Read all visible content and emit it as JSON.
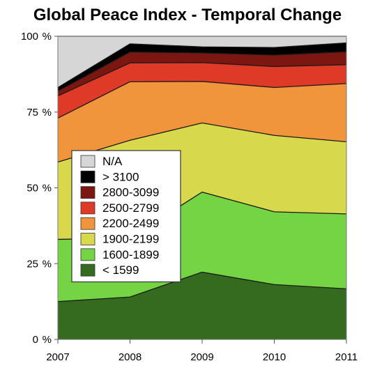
{
  "chart_data": {
    "type": "area",
    "stacked": true,
    "title": "Global Peace Index - Temporal Change",
    "xlabel": "",
    "ylabel": "",
    "x": [
      "2007",
      "2008",
      "2009",
      "2010",
      "2011"
    ],
    "ylim": [
      0,
      100
    ],
    "yticks": [
      "0 %",
      "25 %",
      "50 %",
      "75 %",
      "100 %"
    ],
    "legend_position": "center-left",
    "series": [
      {
        "name": "< 1599",
        "color": "#346b1f",
        "values": [
          12.5,
          14.0,
          22.2,
          18.1,
          16.7
        ]
      },
      {
        "name": "1600-1899",
        "color": "#75d443",
        "values": [
          20.5,
          19.5,
          26.4,
          24.0,
          24.7
        ]
      },
      {
        "name": "1900-2199",
        "color": "#d7d84c",
        "values": [
          25.5,
          32.2,
          22.8,
          25.2,
          23.8
        ]
      },
      {
        "name": "2200-2499",
        "color": "#f0953c",
        "values": [
          14.5,
          19.3,
          13.7,
          15.8,
          19.2
        ]
      },
      {
        "name": "2500-2799",
        "color": "#de3a27",
        "values": [
          7.3,
          6.2,
          6.2,
          6.9,
          6.2
        ]
      },
      {
        "name": "2800-3099",
        "color": "#7c1610",
        "values": [
          1.6,
          3.6,
          3.2,
          3.8,
          4.3
        ]
      },
      {
        "name": "> 3100",
        "color": "#000000",
        "values": [
          1.2,
          2.7,
          2.0,
          2.5,
          2.9
        ]
      },
      {
        "name": "N/A",
        "color": "#d6d6d6",
        "values": [
          16.9,
          2.5,
          3.5,
          3.7,
          2.2
        ]
      }
    ]
  }
}
